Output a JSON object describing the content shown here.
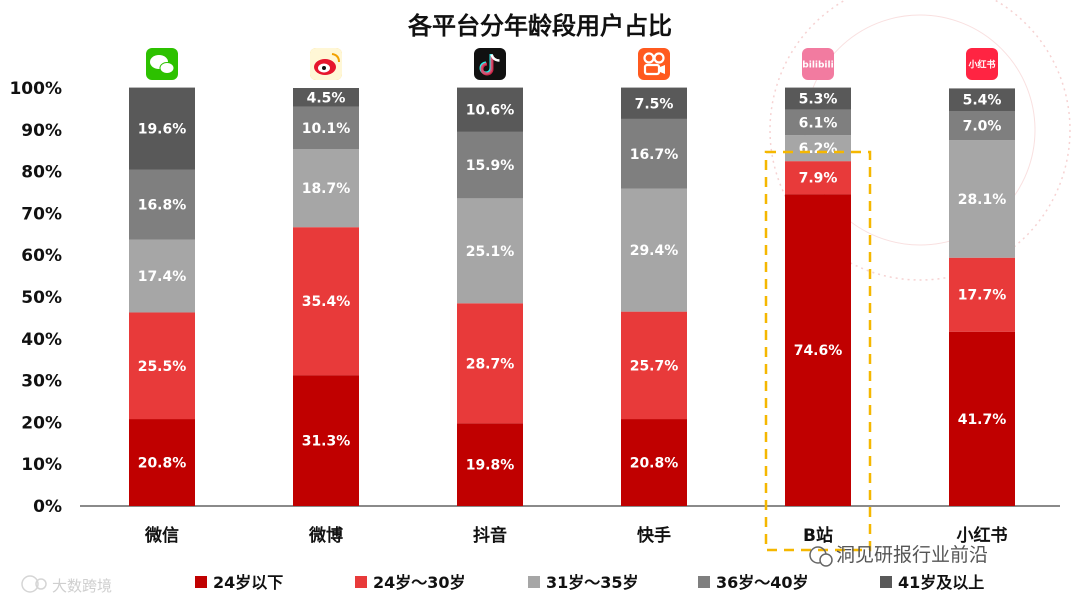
{
  "chart_data": {
    "type": "bar",
    "stacked": true,
    "title": "各平台分年龄段用户占比",
    "categories": [
      "微信",
      "微博",
      "抖音",
      "快手",
      "B站",
      "小红书"
    ],
    "yticks": [
      "0%",
      "10%",
      "20%",
      "30%",
      "40%",
      "50%",
      "60%",
      "70%",
      "80%",
      "90%",
      "100%"
    ],
    "ylim": [
      0,
      100
    ],
    "series": [
      {
        "name": "24岁以下",
        "color": "#c00000",
        "values": [
          20.8,
          31.3,
          19.8,
          20.8,
          74.6,
          41.7
        ],
        "labels": [
          "20.8%",
          "31.3%",
          "19.8%",
          "20.8%",
          "74.6%",
          "41.7%"
        ]
      },
      {
        "name": "24岁～30岁",
        "color": "#e83a3a",
        "values": [
          25.5,
          35.4,
          28.7,
          25.7,
          7.9,
          17.7
        ],
        "labels": [
          "25.5%",
          "35.4%",
          "28.7%",
          "25.7%",
          "7.9%",
          "17.7%"
        ]
      },
      {
        "name": "31岁～35岁",
        "color": "#a6a6a6",
        "values": [
          17.4,
          18.7,
          25.1,
          29.4,
          6.2,
          28.1
        ],
        "labels": [
          "17.4%",
          "18.7%",
          "25.1%",
          "29.4%",
          "6.2%",
          "28.1%"
        ]
      },
      {
        "name": "36岁～40岁",
        "color": "#7f7f7f",
        "values": [
          16.8,
          10.1,
          15.9,
          16.7,
          6.1,
          7.0
        ],
        "labels": [
          "16.8%",
          "10.1%",
          "15.9%",
          "16.7%",
          "6.1%",
          "7.0%"
        ]
      },
      {
        "name": "41岁及以上",
        "color": "#595959",
        "values": [
          19.6,
          4.5,
          10.6,
          7.5,
          5.3,
          5.4
        ],
        "labels": [
          "19.6%",
          "4.5%",
          "10.6%",
          "7.5%",
          "5.3%",
          "5.4%"
        ]
      }
    ],
    "legend_position": "bottom",
    "highlight_category": "B站",
    "highlight_color": "#f5b700"
  },
  "platform_icons": [
    {
      "name": "wechat-icon",
      "color": "#2dc100"
    },
    {
      "name": "weibo-icon",
      "color": "#f2c230"
    },
    {
      "name": "douyin-icon",
      "color": "#111111"
    },
    {
      "name": "kuaishou-icon",
      "color": "#ff5a1f"
    },
    {
      "name": "bilibili-icon",
      "color": "#f27ba0",
      "text": "bilibili"
    },
    {
      "name": "xiaohongshu-icon",
      "color": "#ff2442",
      "text": "小红书"
    }
  ],
  "watermarks": {
    "left": "大数跨境",
    "right": "洞见研报行业前沿"
  }
}
